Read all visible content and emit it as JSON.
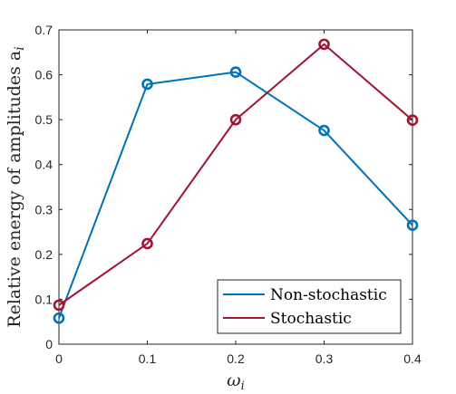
{
  "chart_data": {
    "type": "line",
    "title": "",
    "xlabel": "ωi",
    "xlabel_main": "ω",
    "xlabel_sub": "i",
    "ylabel": "Relative energy of amplitudes ai",
    "ylabel_main": "Relative energy of amplitudes a",
    "ylabel_sub": "i",
    "xlim": [
      0,
      0.4
    ],
    "ylim": [
      0,
      0.7
    ],
    "xticks": [
      0,
      0.1,
      0.2,
      0.3,
      0.4
    ],
    "xtick_labels": [
      "0",
      "0.1",
      "0.2",
      "0.3",
      "0.4"
    ],
    "yticks": [
      0,
      0.1,
      0.2,
      0.3,
      0.4,
      0.5,
      0.6,
      0.7
    ],
    "ytick_labels": [
      "0",
      "0.1",
      "0.2",
      "0.3",
      "0.4",
      "0.5",
      "0.6",
      "0.7"
    ],
    "grid": false,
    "legend_position": "bottom-right",
    "x": [
      0,
      0.1,
      0.2,
      0.3,
      0.4
    ],
    "series": [
      {
        "name": "Non-stochastic",
        "color": "#0072BD",
        "marker": "circle",
        "values": [
          0.058,
          0.579,
          0.606,
          0.476,
          0.265
        ]
      },
      {
        "name": "Stochastic",
        "color": "#A2142F",
        "marker": "circle",
        "values": [
          0.087,
          0.224,
          0.5,
          0.668,
          0.499
        ]
      }
    ]
  }
}
